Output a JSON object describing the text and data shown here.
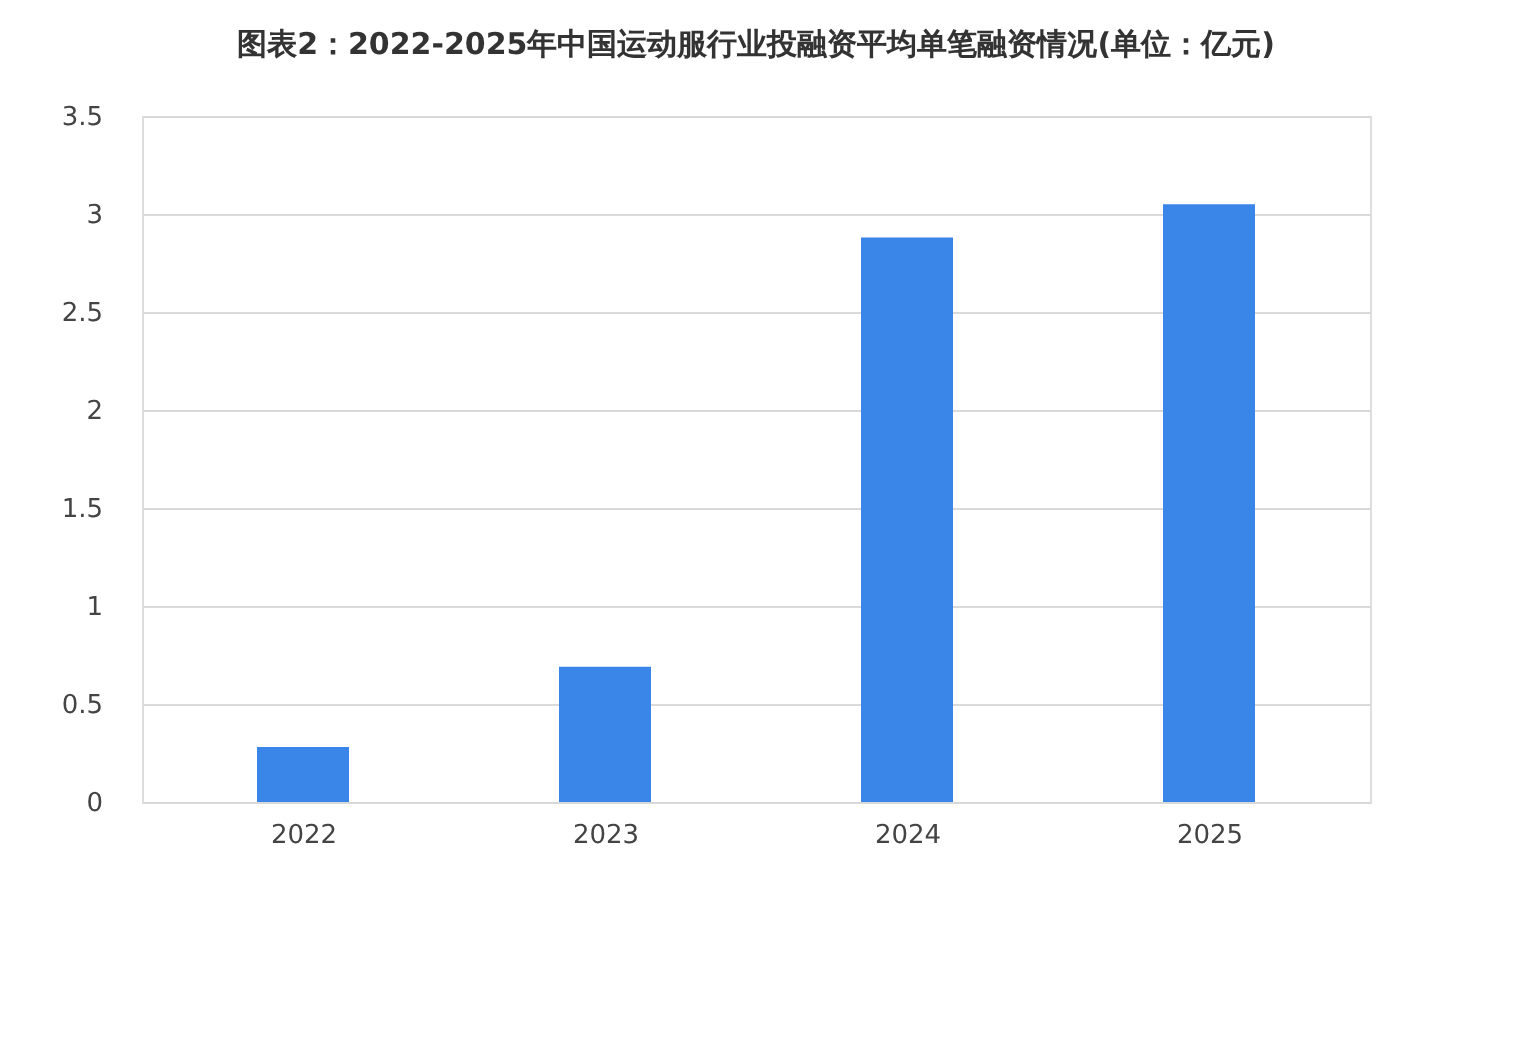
{
  "chart_data": {
    "type": "bar",
    "title": "图表2：2022-2025年中国运动服行业投融资平均单笔融资情况(单位：亿元)",
    "categories": [
      "2022",
      "2023",
      "2024",
      "2025"
    ],
    "values": [
      0.28,
      0.69,
      2.88,
      3.05
    ],
    "color": "#3a86e8",
    "ylim": [
      0,
      3.5
    ],
    "yticks": [
      0,
      0.5,
      1,
      1.5,
      2,
      2.5,
      3,
      3.5
    ],
    "grid": "y"
  }
}
